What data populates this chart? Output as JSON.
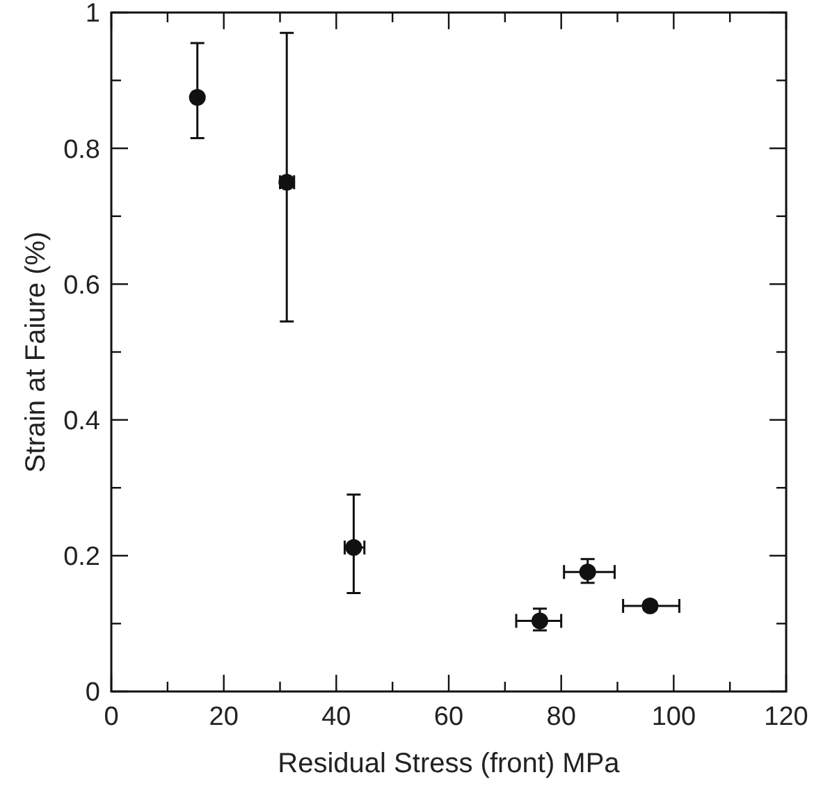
{
  "chart_data": {
    "type": "scatter",
    "xlabel": "Residual Stress (front) MPa",
    "ylabel": "Strain at Faiure (%)",
    "x": [
      15.3,
      31.2,
      43.1,
      76.2,
      84.7,
      95.8
    ],
    "series": [
      {
        "color": "#111111",
        "values": [
          0.875,
          0.75,
          0.212,
          0.104,
          0.176,
          0.126
        ],
        "errors": [
          [
            0.815,
            0.955
          ],
          [
            0.545,
            0.97
          ],
          [
            0.145,
            0.29
          ],
          [
            0.09,
            0.122
          ],
          [
            0.16,
            0.195
          ],
          [
            0.12,
            0.132
          ]
        ],
        "xerrors": [
          [
            14.5,
            16
          ],
          [
            30,
            32.5
          ],
          [
            41.5,
            45
          ],
          [
            72,
            80
          ],
          [
            80.5,
            89.5
          ],
          [
            91,
            101
          ]
        ]
      }
    ],
    "marker": "circle",
    "xlim": [
      0,
      120
    ],
    "ylim": [
      0,
      1
    ],
    "xticks": [
      0,
      {
        "value": 10,
        "label": null
      },
      20,
      {
        "value": 30,
        "label": null
      },
      40,
      {
        "value": 50,
        "label": null
      },
      60,
      {
        "value": 70,
        "label": null
      },
      80,
      {
        "value": 90,
        "label": null
      },
      100,
      {
        "value": 110,
        "label": null
      },
      120
    ],
    "yticks": [
      0,
      {
        "value": 0.1,
        "label": null
      },
      0.2,
      {
        "value": 0.3,
        "label": null
      },
      0.4,
      {
        "value": 0.5,
        "label": null
      },
      0.6,
      {
        "value": 0.7,
        "label": null
      },
      0.8,
      {
        "value": 0.9,
        "label": null
      },
      1
    ],
    "grid": false
  }
}
